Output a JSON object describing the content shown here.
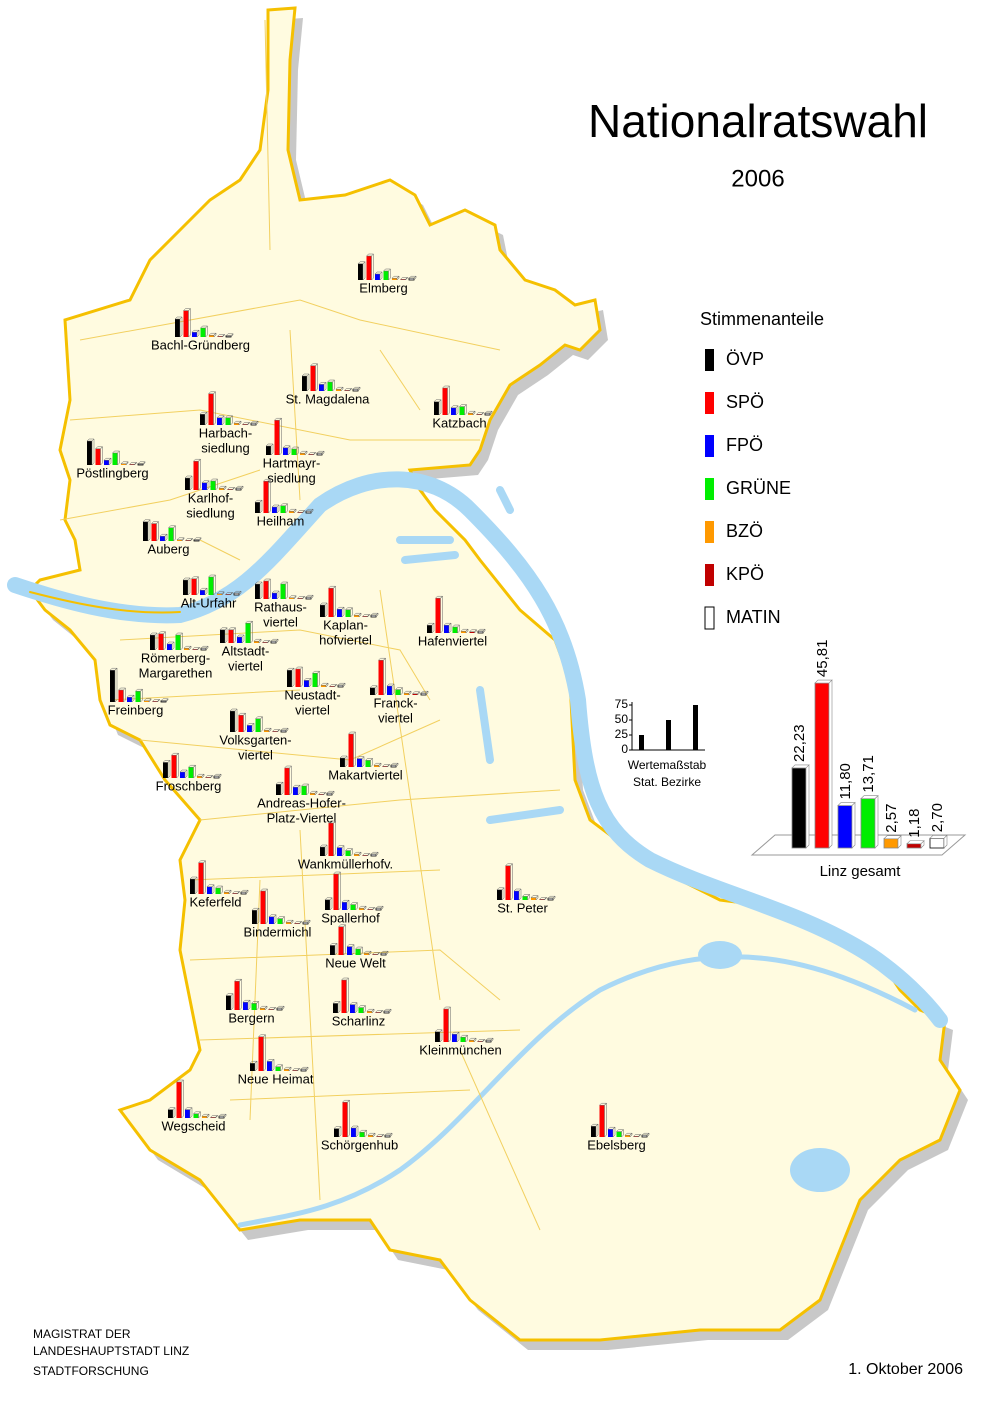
{
  "title": "Nationalratswahl",
  "subtitle": "2006",
  "legend": {
    "title": "Stimmenanteile",
    "parties": [
      {
        "name": "ÖVP",
        "color": "#000000"
      },
      {
        "name": "SPÖ",
        "color": "#ff0000"
      },
      {
        "name": "FPÖ",
        "color": "#0000ff"
      },
      {
        "name": "GRÜNE",
        "color": "#00ee00"
      },
      {
        "name": "BZÖ",
        "color": "#ff9900"
      },
      {
        "name": "KPÖ",
        "color": "#c00000"
      },
      {
        "name": "MATIN",
        "color": "#ffffff"
      }
    ]
  },
  "scale": {
    "title": "Wertemaßstab",
    "subtitle": "Stat. Bezirke",
    "yticks": [
      0,
      25,
      50,
      75
    ]
  },
  "districts": [
    {
      "label": [
        "Elmberg"
      ],
      "values": [
        27,
        40,
        10,
        15,
        3,
        1,
        3
      ]
    },
    {
      "label": [
        "Bachl-Gründberg"
      ],
      "values": [
        30,
        44,
        8,
        15,
        3,
        1,
        2
      ]
    },
    {
      "label": [
        "St. Magdalena"
      ],
      "values": [
        25,
        42,
        11,
        15,
        3,
        1,
        3
      ]
    },
    {
      "label": [
        "Katzbach"
      ],
      "values": [
        22,
        45,
        12,
        14,
        3,
        1,
        3
      ]
    },
    {
      "label": [
        "Harbach-",
        "siedlung"
      ],
      "values": [
        18,
        52,
        12,
        12,
        3,
        1,
        3
      ]
    },
    {
      "label": [
        "Pöstlingberg"
      ],
      "values": [
        40,
        27,
        8,
        20,
        2,
        1,
        2
      ]
    },
    {
      "label": [
        "Hartmayr-",
        "siedlung"
      ],
      "values": [
        15,
        58,
        12,
        10,
        3,
        1,
        3
      ]
    },
    {
      "label": [
        "Karlhof-",
        "siedlung"
      ],
      "values": [
        20,
        48,
        12,
        15,
        3,
        1,
        3
      ]
    },
    {
      "label": [
        "Heilham"
      ],
      "values": [
        18,
        53,
        10,
        12,
        3,
        1,
        3
      ]
    },
    {
      "label": [
        "Auberg"
      ],
      "values": [
        32,
        29,
        8,
        22,
        2,
        1,
        2
      ]
    },
    {
      "label": [
        "Alt-Urfahr"
      ],
      "values": [
        25,
        27,
        8,
        30,
        2,
        1,
        3
      ]
    },
    {
      "label": [
        "Rathaus-",
        "viertel"
      ],
      "values": [
        25,
        30,
        10,
        25,
        2,
        1,
        3
      ]
    },
    {
      "label": [
        "Kaplan-",
        "hofviertel"
      ],
      "values": [
        20,
        48,
        13,
        12,
        3,
        1,
        3
      ]
    },
    {
      "label": [
        "Hafenviertel"
      ],
      "values": [
        13,
        58,
        13,
        10,
        3,
        2,
        3
      ]
    },
    {
      "label": [
        "Römerberg-",
        "Margarethen"
      ],
      "values": [
        25,
        27,
        10,
        25,
        3,
        1,
        3
      ]
    },
    {
      "label": [
        "Altstadt-",
        "viertel"
      ],
      "values": [
        22,
        22,
        10,
        33,
        3,
        1,
        3
      ]
    },
    {
      "label": [
        "Freinberg"
      ],
      "values": [
        53,
        20,
        8,
        18,
        2,
        1,
        2
      ]
    },
    {
      "label": [
        "Neustadt-",
        "viertel"
      ],
      "values": [
        28,
        30,
        11,
        23,
        3,
        1,
        3
      ]
    },
    {
      "label": [
        "Franck-",
        "viertel"
      ],
      "values": [
        12,
        58,
        15,
        9,
        3,
        2,
        3
      ]
    },
    {
      "label": [
        "Volksgarten-",
        "viertel"
      ],
      "values": [
        35,
        28,
        11,
        22,
        3,
        1,
        3
      ]
    },
    {
      "label": [
        "Froschberg"
      ],
      "values": [
        26,
        38,
        10,
        18,
        3,
        1,
        3
      ]
    },
    {
      "label": [
        "Makartviertel"
      ],
      "values": [
        15,
        55,
        14,
        11,
        3,
        1,
        3
      ]
    },
    {
      "label": [
        "Andreas-Hofer-",
        "Platz-Viertel"
      ],
      "values": [
        18,
        45,
        13,
        15,
        3,
        1,
        3
      ]
    },
    {
      "label": [
        "Wankmüllerhofv."
      ],
      "values": [
        15,
        55,
        14,
        9,
        3,
        1,
        3
      ]
    },
    {
      "label": [
        "Keferfeld"
      ],
      "values": [
        25,
        52,
        12,
        10,
        3,
        1,
        3
      ]
    },
    {
      "label": [
        "St. Peter"
      ],
      "values": [
        17,
        57,
        15,
        6,
        4,
        1,
        3
      ]
    },
    {
      "label": [
        "Spallerhof"
      ],
      "values": [
        17,
        60,
        13,
        9,
        3,
        1,
        3
      ]
    },
    {
      "label": [
        "Bindermichl"
      ],
      "values": [
        23,
        55,
        12,
        9,
        3,
        1,
        3
      ]
    },
    {
      "label": [
        "Neue Welt"
      ],
      "values": [
        16,
        47,
        14,
        10,
        3,
        1,
        3
      ]
    },
    {
      "label": [
        "Bergern"
      ],
      "values": [
        24,
        48,
        13,
        11,
        3,
        1,
        3
      ]
    },
    {
      "label": [
        "Scharlinz"
      ],
      "values": [
        16,
        55,
        14,
        9,
        3,
        1,
        3
      ]
    },
    {
      "label": [
        "Kleinmünchen"
      ],
      "values": [
        17,
        55,
        13,
        8,
        3,
        1,
        3
      ]
    },
    {
      "label": [
        "Neue Heimat"
      ],
      "values": [
        13,
        57,
        16,
        7,
        3,
        1,
        3
      ]
    },
    {
      "label": [
        "Wegscheid"
      ],
      "values": [
        14,
        60,
        14,
        7,
        3,
        1,
        3
      ]
    },
    {
      "label": [
        "Schörgenhub"
      ],
      "values": [
        14,
        58,
        15,
        8,
        3,
        1,
        3
      ]
    },
    {
      "label": [
        "Ebelsberg"
      ],
      "values": [
        18,
        53,
        13,
        9,
        3,
        1,
        3
      ]
    }
  ],
  "total": {
    "label": "Linz gesamt",
    "values": [
      22.23,
      45.81,
      11.8,
      13.71,
      2.57,
      1.18,
      2.7
    ],
    "value_labels": [
      "22,23",
      "45,81",
      "11,80",
      "13,71",
      "2,57",
      "1,18",
      "2,70"
    ]
  },
  "footer": {
    "lines": [
      "MAGISTRAT  DER",
      "LANDESHAUPTSTADT  LINZ",
      "STADTFORSCHUNG"
    ],
    "date": "1. Oktober 2006"
  }
}
